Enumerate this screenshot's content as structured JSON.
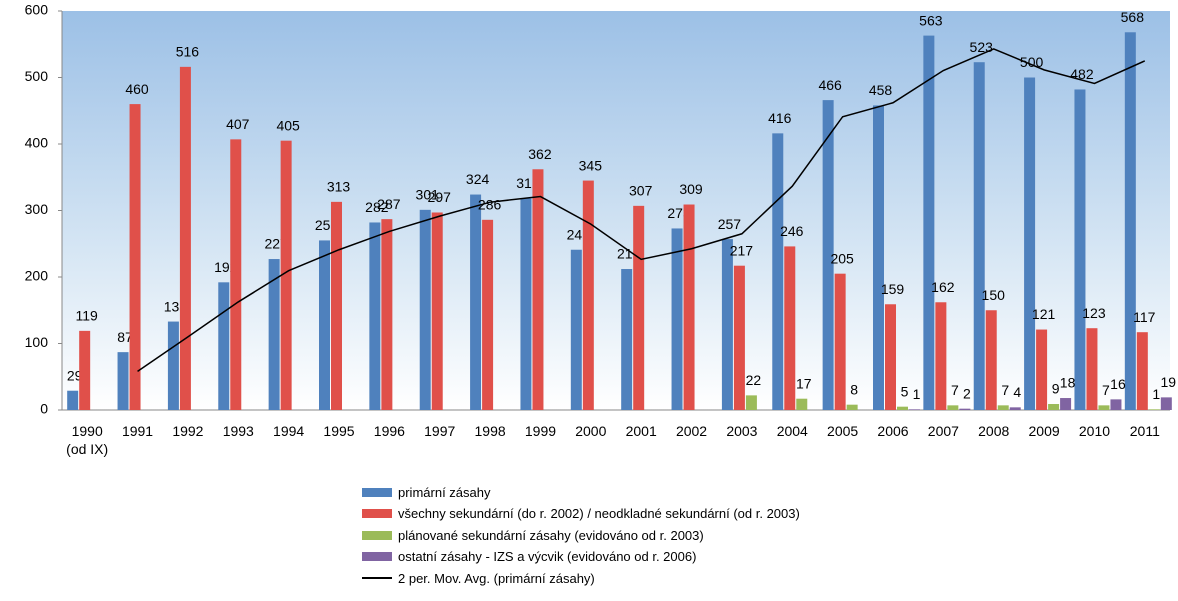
{
  "chart_data": {
    "type": "bar",
    "categories": [
      "1990\n(od IX)",
      "1991",
      "1992",
      "1993",
      "1994",
      "1995",
      "1996",
      "1997",
      "1998",
      "1999",
      "2000",
      "2001",
      "2002",
      "2003",
      "2004",
      "2005",
      "2006",
      "2007",
      "2008",
      "2009",
      "2010",
      "2011"
    ],
    "series": [
      {
        "name": "primární zásahy",
        "color": "#4f81bd",
        "values": [
          29,
          87,
          133,
          192,
          227,
          255,
          282,
          301,
          324,
          318,
          241,
          212,
          273,
          257,
          416,
          466,
          458,
          563,
          523,
          500,
          482,
          568
        ]
      },
      {
        "name": "všechny sekundární (do r. 2002) / neodkladné sekundární (od r. 2003)",
        "color": "#e0504a",
        "values": [
          119,
          460,
          516,
          407,
          405,
          313,
          287,
          297,
          286,
          362,
          345,
          307,
          309,
          217,
          246,
          205,
          159,
          162,
          150,
          121,
          123,
          117
        ]
      },
      {
        "name": "plánované sekundární zásahy (evidováno od r. 2003)",
        "color": "#9bbb59",
        "values": [
          null,
          null,
          null,
          null,
          null,
          null,
          null,
          null,
          null,
          null,
          null,
          null,
          null,
          22,
          17,
          8,
          5,
          7,
          7,
          9,
          7,
          1
        ]
      },
      {
        "name": "ostatní zásahy - IZS a výcvik (evidováno od r. 2006)",
        "color": "#8064a2",
        "values": [
          null,
          null,
          null,
          null,
          null,
          null,
          null,
          null,
          null,
          null,
          null,
          null,
          null,
          null,
          null,
          null,
          1,
          2,
          4,
          18,
          16,
          19
        ]
      },
      {
        "name": "2 per. Mov. Avg. (primární zásahy)",
        "color": "#000000",
        "type": "line",
        "values": [
          null,
          58,
          110,
          162.5,
          209.5,
          241,
          268.5,
          291.5,
          312.5,
          321,
          279.5,
          226.5,
          242.5,
          265,
          336.5,
          441,
          462,
          510.5,
          543,
          511.5,
          491,
          525
        ]
      }
    ],
    "ylim": [
      0,
      600
    ],
    "yticks": [
      0,
      100,
      200,
      300,
      400,
      500,
      600
    ],
    "grid": false
  }
}
